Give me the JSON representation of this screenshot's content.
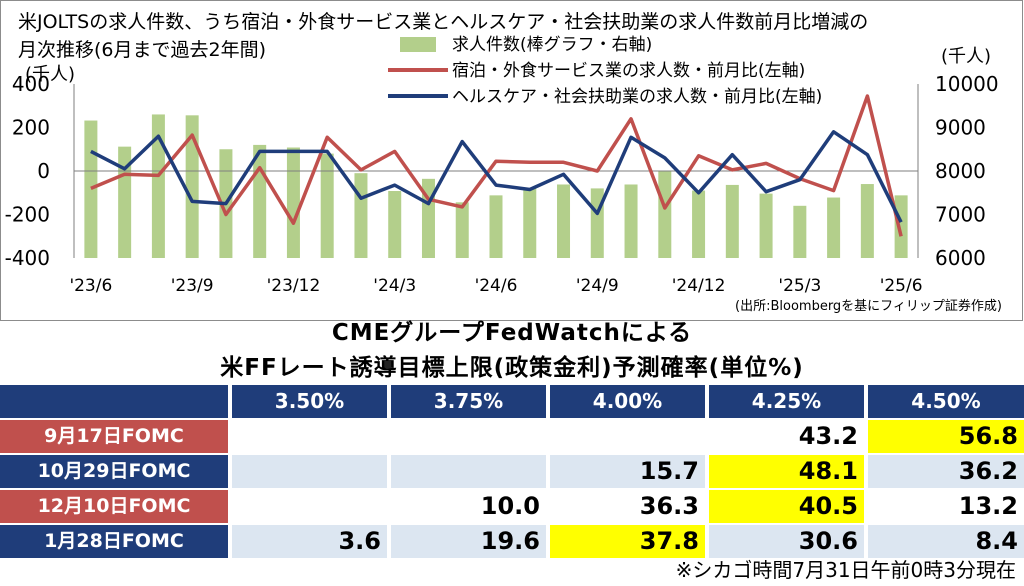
{
  "chart_data": {
    "type": "bar+line",
    "title": "米JOLTSの求人件数、うち宿泊・外食サービス業とヘルスケア・社会扶助業の求人件数前月比増減の月次推移(6月まで過去2年間)",
    "title_line1": "米JOLTSの求人件数、うち宿泊・外食サービス業とヘルスケア・社会扶助業の求人件数前月比増減の",
    "title_line2": "月次推移(6月まで過去2年間)",
    "left_unit": "(千人)",
    "right_unit": "(千人)",
    "left_ylim": [
      -400,
      400
    ],
    "left_ticks": [
      "400",
      "200",
      "0",
      "-200",
      "-400"
    ],
    "right_ylim": [
      6000,
      10000
    ],
    "right_ticks": [
      "10000",
      "9000",
      "8000",
      "7000",
      "6000"
    ],
    "x": [
      "'23/6",
      "'23/7",
      "'23/8",
      "'23/9",
      "'23/10",
      "'23/11",
      "'23/12",
      "'24/1",
      "'24/2",
      "'24/3",
      "'24/4",
      "'24/5",
      "'24/6",
      "'24/7",
      "'24/8",
      "'24/9",
      "'24/10",
      "'24/11",
      "'24/12",
      "'25/1",
      "'25/2",
      "'25/3",
      "'25/4",
      "'25/5",
      "'25/6"
    ],
    "x_tick_labels": [
      {
        "index": 0,
        "label": "'23/6"
      },
      {
        "index": 3,
        "label": "'23/9"
      },
      {
        "index": 6,
        "label": "'23/12"
      },
      {
        "index": 9,
        "label": "'24/3"
      },
      {
        "index": 12,
        "label": "'24/6"
      },
      {
        "index": 15,
        "label": "'24/9"
      },
      {
        "index": 18,
        "label": "'24/12"
      },
      {
        "index": 21,
        "label": "'25/3"
      },
      {
        "index": 24,
        "label": "'25/6"
      }
    ],
    "series": [
      {
        "name": "求人件数(棒グラフ・右軸)",
        "type": "bar",
        "axis": "right",
        "color": "#b3cf8b",
        "values": [
          9160,
          8560,
          9300,
          9280,
          8500,
          8600,
          8540,
          8400,
          7950,
          7540,
          7820,
          7280,
          7440,
          7600,
          7690,
          7600,
          7690,
          8000,
          7550,
          7680,
          7480,
          7200,
          7390,
          7700,
          7440
        ]
      },
      {
        "name": "宿泊・外食サービス業の求人数・前月比(左軸)",
        "type": "line",
        "axis": "left",
        "color": "#c0504d",
        "values": [
          -80,
          -15,
          -20,
          165,
          -200,
          15,
          -240,
          155,
          5,
          90,
          -130,
          -165,
          45,
          40,
          40,
          0,
          240,
          -170,
          70,
          5,
          35,
          -35,
          -90,
          345,
          -300
        ]
      },
      {
        "name": "ヘルスケア・社会扶助業の求人数・前月比(左軸)",
        "type": "line",
        "axis": "left",
        "color": "#1f3d7a",
        "values": [
          90,
          10,
          160,
          -140,
          -150,
          90,
          90,
          90,
          -125,
          -65,
          -150,
          135,
          -65,
          -85,
          -15,
          -195,
          155,
          60,
          -100,
          75,
          -95,
          -40,
          180,
          75,
          -235
        ]
      }
    ],
    "source": "(出所:Bloombergを基にフィリップ証券作成)"
  },
  "fedwatch": {
    "title_line1": "CMEグループFedWatchによる",
    "title_line2": "米FFレート誘導目標上限(政策金利)予測確率(単位%)",
    "headers": [
      "3.50%",
      "3.75%",
      "4.00%",
      "4.25%",
      "4.50%"
    ],
    "rows": [
      {
        "label": "9月17日FOMC",
        "values": [
          "",
          "",
          "",
          "43.2",
          "56.8"
        ],
        "highlight": 4
      },
      {
        "label": "10月29日FOMC",
        "values": [
          "",
          "",
          "15.7",
          "48.1",
          "36.2"
        ],
        "highlight": 3
      },
      {
        "label": "12月10日FOMC",
        "values": [
          "",
          "10.0",
          "36.3",
          "40.5",
          "13.2"
        ],
        "highlight": 3
      },
      {
        "label": "1月28日FOMC",
        "values": [
          "3.6",
          "19.6",
          "37.8",
          "30.6",
          "8.4"
        ],
        "highlight": 2
      }
    ],
    "as_of": "※シカゴ時間7月31日午前0時3分現在"
  },
  "colors": {
    "header_bg": "#1f3d7a",
    "label_bg_odd": "#c0504d",
    "label_bg_even": "#1f3d7a",
    "row_bg_even": "#dce6f1",
    "highlight": "#ffff00"
  }
}
